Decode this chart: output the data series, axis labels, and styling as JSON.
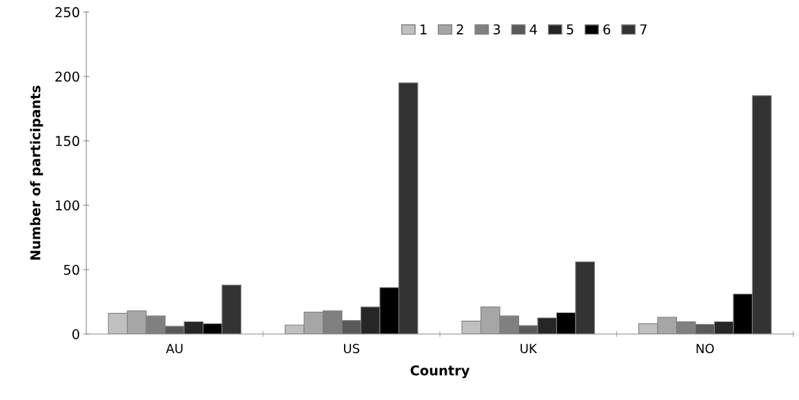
{
  "chart_data": {
    "type": "bar",
    "xlabel": "Country",
    "ylabel": "Number of participants",
    "categories": [
      "AU",
      "US",
      "UK",
      "NO"
    ],
    "series": [
      {
        "name": "1",
        "color": "#c0c0c0",
        "values": [
          16,
          7,
          10,
          8
        ]
      },
      {
        "name": "2",
        "color": "#a6a6a6",
        "values": [
          18,
          17,
          21,
          13
        ]
      },
      {
        "name": "3",
        "color": "#808080",
        "values": [
          14,
          18,
          14,
          9.5
        ]
      },
      {
        "name": "4",
        "color": "#595959",
        "values": [
          6,
          10.5,
          6.5,
          7.5
        ]
      },
      {
        "name": "5",
        "color": "#262626",
        "values": [
          9.5,
          21,
          12.5,
          9.5
        ]
      },
      {
        "name": "6",
        "color": "#000000",
        "values": [
          8,
          36,
          16.5,
          31
        ]
      },
      {
        "name": "7",
        "color": "#333333",
        "values": [
          38,
          195,
          56,
          185
        ]
      }
    ],
    "ylim": [
      0,
      250
    ],
    "yticks": [
      0,
      50,
      100,
      150,
      200,
      250
    ],
    "grid": false,
    "legend": "top"
  }
}
